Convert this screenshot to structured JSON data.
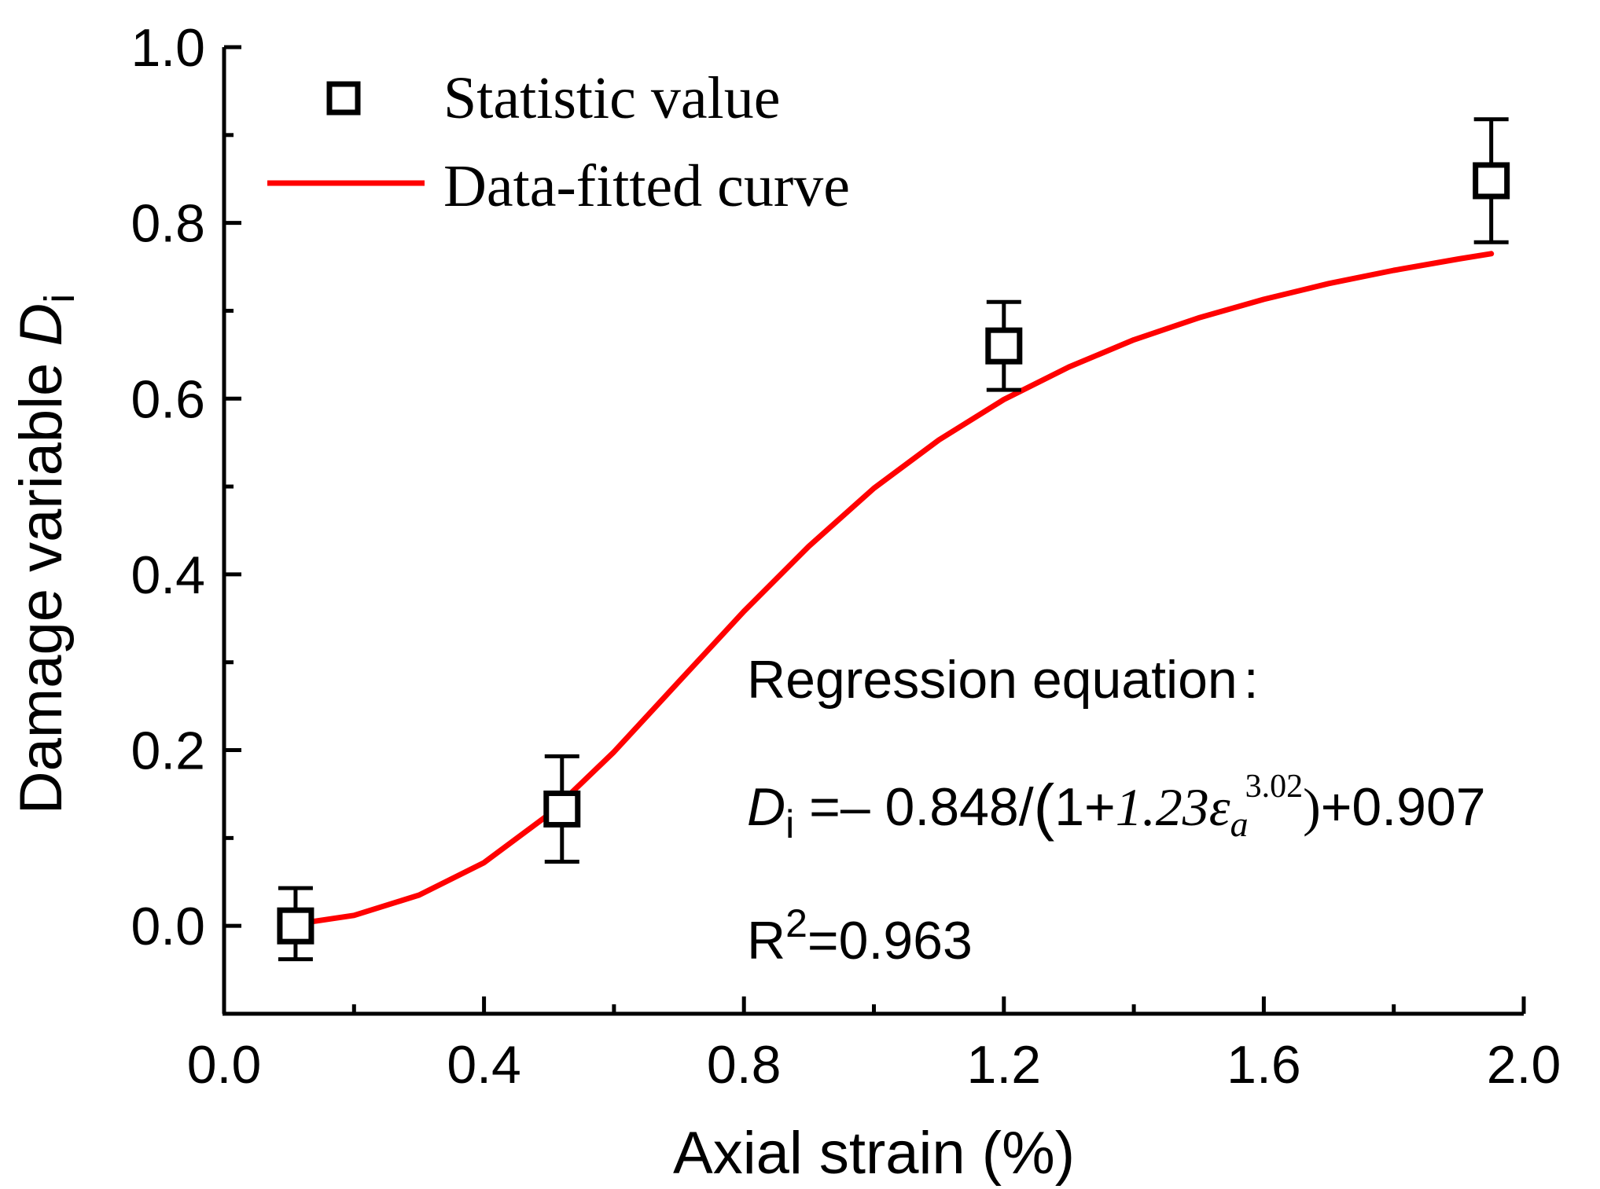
{
  "chart_data": {
    "type": "scatter",
    "title": "",
    "xlabel": "Axial strain (%)",
    "ylabel": "Damage variable",
    "ylabel_symbol": "D",
    "ylabel_subscript": "i",
    "xlim": [
      0.0,
      2.0
    ],
    "ylim": [
      -0.1,
      1.0
    ],
    "xticks": [
      0.0,
      0.4,
      0.8,
      1.2,
      1.6,
      2.0
    ],
    "xtick_labels": [
      "0.0",
      "0.4",
      "0.8",
      "1.2",
      "1.6",
      "2.0"
    ],
    "yticks": [
      0.0,
      0.2,
      0.4,
      0.6,
      0.8,
      1.0
    ],
    "ytick_labels": [
      "0.0",
      "0.2",
      "0.4",
      "0.6",
      "0.8",
      "1.0"
    ],
    "grid": false,
    "legend_position": "top-left",
    "series": [
      {
        "name": "Statistic value",
        "kind": "points-with-error-bars",
        "marker": "open-square",
        "color": "#000000",
        "x": [
          0.11,
          0.52,
          1.2,
          1.95
        ],
        "y": [
          0.0,
          0.133,
          0.66,
          0.848
        ],
        "err_low": [
          0.038,
          0.06,
          0.05,
          0.07
        ],
        "err_high": [
          0.043,
          0.06,
          0.05,
          0.07
        ]
      },
      {
        "name": "Data-fitted curve",
        "kind": "line",
        "color": "#ff0000",
        "x": [
          0.11,
          0.2,
          0.3,
          0.4,
          0.5,
          0.6,
          0.7,
          0.8,
          0.9,
          1.0,
          1.1,
          1.2,
          1.3,
          1.4,
          1.5,
          1.6,
          1.7,
          1.8,
          1.9,
          1.95
        ],
        "y": [
          0.002,
          0.012,
          0.035,
          0.072,
          0.127,
          0.198,
          0.278,
          0.358,
          0.432,
          0.498,
          0.553,
          0.599,
          0.636,
          0.667,
          0.692,
          0.713,
          0.731,
          0.746,
          0.759,
          0.765
        ]
      }
    ],
    "annotation": {
      "heading": "Regression equation",
      "colon": ":",
      "equation": {
        "lhs_symbol": "D",
        "lhs_subscript": "i",
        "part1": " =– 0.848/",
        "paren_open": "(",
        "part2": "1+",
        "coef": "1.23",
        "epsilon": "ε",
        "epsilon_sub": "a",
        "exponent": "3.02",
        "paren_close": ")",
        "part3": "+0.907"
      },
      "r2_prefix": "R",
      "r2_sup": "2",
      "r2_value": "=0.963"
    }
  }
}
